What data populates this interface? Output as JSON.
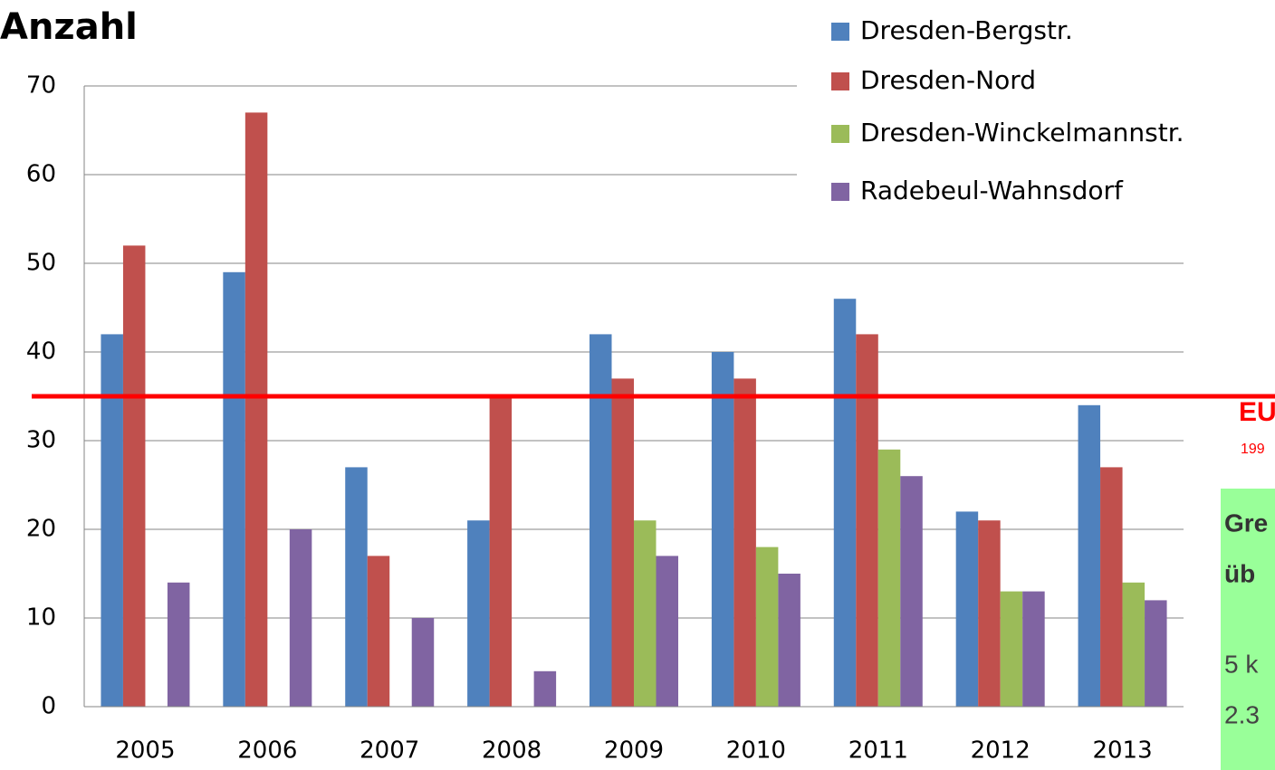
{
  "chart_data": {
    "type": "bar",
    "title": "Anzahl",
    "categories": [
      "2005",
      "2006",
      "2007",
      "2008",
      "2009",
      "2010",
      "2011",
      "2012",
      "2013"
    ],
    "series": [
      {
        "name": "Dresden-Bergstr.",
        "color": "#4f81bd",
        "values": [
          42,
          49,
          27,
          21,
          42,
          40,
          46,
          22,
          34
        ]
      },
      {
        "name": "Dresden-Nord",
        "color": "#c0504d",
        "values": [
          52,
          67,
          17,
          35,
          37,
          37,
          42,
          21,
          27
        ]
      },
      {
        "name": "Dresden-Winckelmannstr.",
        "color": "#9bbb59",
        "values": [
          null,
          null,
          null,
          null,
          21,
          18,
          29,
          13,
          14
        ]
      },
      {
        "name": "Radebeul-Wahnsdorf",
        "color": "#8064a2",
        "values": [
          14,
          20,
          10,
          4,
          17,
          15,
          26,
          13,
          12
        ]
      }
    ],
    "ylim": [
      0,
      70
    ],
    "yticks": [
      0,
      10,
      20,
      30,
      40,
      50,
      60,
      70
    ],
    "grid": true,
    "legend": "top-right",
    "reference_line": {
      "value": 35,
      "color": "#ff0000",
      "label": "EU",
      "sublabel": "199"
    },
    "annotation": {
      "color": "#99ff99",
      "lines": [
        "Gre",
        "üb",
        "5 k",
        "2.3"
      ]
    }
  }
}
